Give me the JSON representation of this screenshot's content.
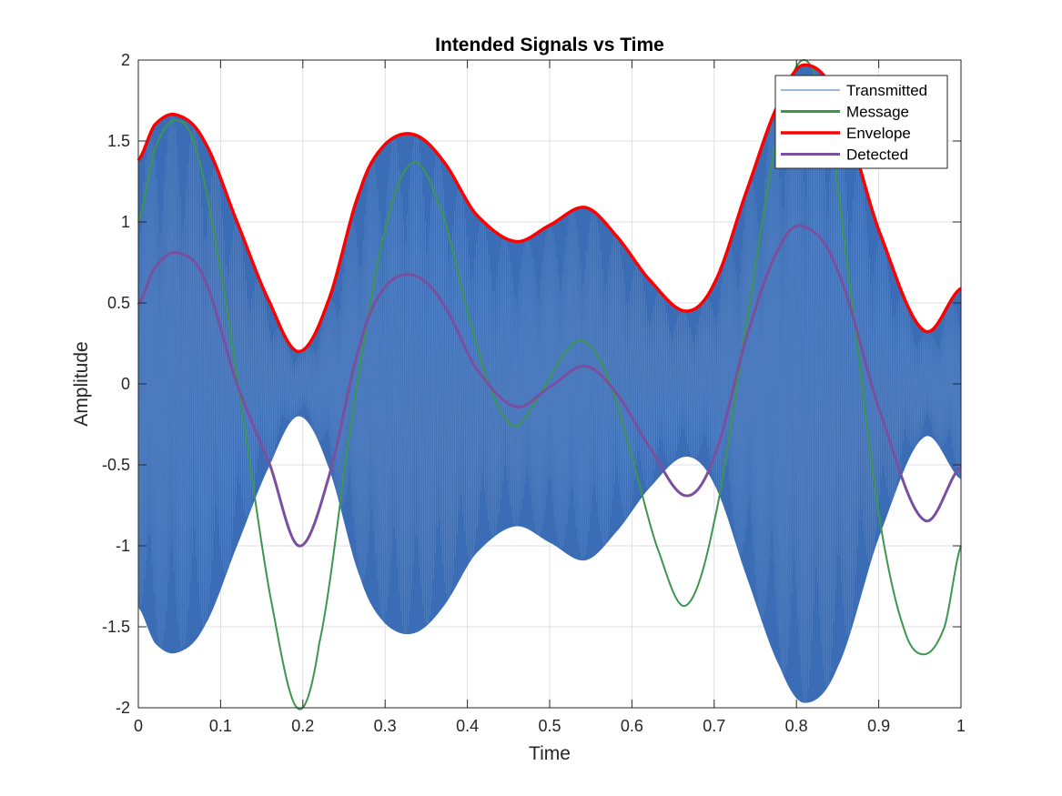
{
  "chart_data": {
    "type": "line",
    "title": "Intended Signals vs Time",
    "xlabel": "Time",
    "ylabel": "Amplitude",
    "xlim": [
      0,
      1
    ],
    "ylim": [
      -2,
      2
    ],
    "xticks": [
      0,
      0.1,
      0.2,
      0.3,
      0.4,
      0.5,
      0.6,
      0.7,
      0.8,
      0.9,
      1
    ],
    "xtick_labels": [
      "0",
      "0.1",
      "0.2",
      "0.3",
      "0.4",
      "0.5",
      "0.6",
      "0.7",
      "0.8",
      "0.9",
      "1"
    ],
    "yticks": [
      2,
      1.5,
      1,
      0.5,
      0,
      -0.5,
      -1,
      -1.5,
      -2
    ],
    "ytick_labels": [
      "2",
      "1.5",
      "1",
      "0.5",
      "0",
      "-0.5",
      "-1",
      "-1.5",
      "-2"
    ],
    "grid": true,
    "legend_position": "top-right",
    "series": [
      {
        "name": "Transmitted",
        "color": "#3a6db5",
        "style": "modulated carrier filling between +envelope and -envelope"
      },
      {
        "name": "Message",
        "color": "#3d9650",
        "x": [
          0,
          0.02,
          0.045,
          0.07,
          0.1,
          0.13,
          0.16,
          0.193,
          0.22,
          0.26,
          0.3,
          0.335,
          0.37,
          0.4,
          0.43,
          0.458,
          0.49,
          0.52,
          0.543,
          0.57,
          0.6,
          0.63,
          0.665,
          0.7,
          0.74,
          0.78,
          0.81,
          0.84,
          0.87,
          0.9,
          0.93,
          0.955,
          0.98,
          1.0
        ],
        "y": [
          1.0,
          1.45,
          1.63,
          1.45,
          0.7,
          -0.3,
          -1.3,
          -2.0,
          -1.6,
          -0.2,
          0.95,
          1.37,
          1.05,
          0.45,
          -0.05,
          -0.26,
          -0.05,
          0.2,
          0.26,
          0.05,
          -0.45,
          -1.0,
          -1.37,
          -0.85,
          0.4,
          1.6,
          2.0,
          1.55,
          0.4,
          -0.8,
          -1.5,
          -1.67,
          -1.5,
          -1.0
        ]
      },
      {
        "name": "Envelope",
        "color": "#ff0000",
        "x": [
          0,
          0.02,
          0.047,
          0.08,
          0.12,
          0.16,
          0.195,
          0.23,
          0.27,
          0.3,
          0.335,
          0.37,
          0.41,
          0.458,
          0.5,
          0.543,
          0.58,
          0.62,
          0.665,
          0.7,
          0.74,
          0.78,
          0.81,
          0.85,
          0.9,
          0.955,
          1.0
        ],
        "y": [
          1.38,
          1.6,
          1.66,
          1.5,
          1.0,
          0.5,
          0.2,
          0.5,
          1.2,
          1.48,
          1.54,
          1.38,
          1.05,
          0.88,
          0.98,
          1.09,
          0.92,
          0.65,
          0.45,
          0.62,
          1.2,
          1.75,
          1.97,
          1.75,
          0.95,
          0.33,
          0.59
        ]
      },
      {
        "name": "Detected",
        "color": "#7b4fa0",
        "x": [
          0,
          0.02,
          0.047,
          0.08,
          0.12,
          0.16,
          0.195,
          0.23,
          0.27,
          0.3,
          0.335,
          0.37,
          0.41,
          0.458,
          0.5,
          0.543,
          0.58,
          0.62,
          0.665,
          0.7,
          0.74,
          0.78,
          0.81,
          0.85,
          0.9,
          0.955,
          1.0
        ],
        "y": [
          0.49,
          0.72,
          0.81,
          0.65,
          0.0,
          -0.5,
          -1.0,
          -0.6,
          0.25,
          0.6,
          0.67,
          0.5,
          0.1,
          -0.14,
          -0.02,
          0.11,
          -0.05,
          -0.38,
          -0.69,
          -0.45,
          0.3,
          0.85,
          0.97,
          0.7,
          -0.15,
          -0.84,
          -0.51
        ]
      }
    ]
  }
}
